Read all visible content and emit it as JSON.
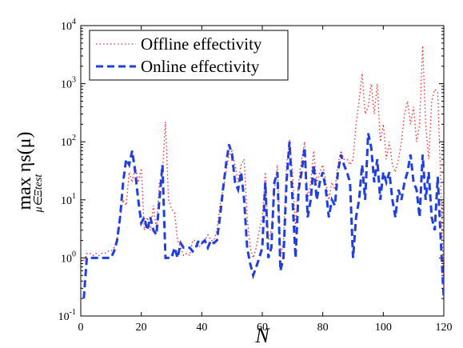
{
  "chart_data": {
    "type": "line",
    "xlabel": "N",
    "ylabel": "max ηs(μ)",
    "ylabel_sub": "μ∈Ξtest",
    "log_y": true,
    "legend": "upper left",
    "xlim": [
      0,
      120
    ],
    "xticks": [
      0,
      20,
      40,
      60,
      80,
      100,
      120
    ],
    "ylim": [
      0.1,
      10000
    ],
    "yticks": [
      {
        "value": 0.1,
        "label": "10^-1"
      },
      {
        "value": 1,
        "label": "10^0"
      },
      {
        "value": 10,
        "label": "10^1"
      },
      {
        "value": 100,
        "label": "10^2"
      },
      {
        "value": 1000,
        "label": "10^3"
      },
      {
        "value": 10000,
        "label": "10^4"
      }
    ],
    "x": [
      1,
      2,
      3,
      4,
      5,
      6,
      7,
      8,
      9,
      10,
      11,
      12,
      13,
      14,
      15,
      16,
      17,
      18,
      19,
      20,
      21,
      22,
      23,
      24,
      25,
      26,
      27,
      28,
      29,
      30,
      31,
      32,
      33,
      34,
      35,
      36,
      37,
      38,
      39,
      40,
      41,
      42,
      43,
      44,
      45,
      46,
      47,
      48,
      49,
      50,
      51,
      52,
      53,
      54,
      55,
      56,
      57,
      58,
      59,
      60,
      61,
      62,
      63,
      64,
      65,
      66,
      67,
      68,
      69,
      70,
      71,
      72,
      73,
      74,
      75,
      76,
      77,
      78,
      79,
      80,
      81,
      82,
      83,
      84,
      85,
      86,
      87,
      88,
      89,
      90,
      91,
      92,
      93,
      94,
      95,
      96,
      97,
      98,
      99,
      100,
      101,
      102,
      103,
      104,
      105,
      106,
      107,
      108,
      109,
      110,
      111,
      112,
      113,
      114,
      115,
      116,
      117,
      118,
      119,
      120
    ],
    "series": [
      {
        "name": "Offline effectivity",
        "color": "#ff2020",
        "dash": "1.5 3",
        "width": 1.3,
        "values": [
          0.9,
          1.2,
          1.2,
          1.1,
          1.2,
          1.1,
          1.2,
          1.2,
          1.3,
          1.3,
          1.5,
          2,
          5,
          10,
          8,
          30,
          20,
          40,
          20,
          35,
          3,
          5,
          3,
          8,
          3,
          20,
          30,
          220,
          10,
          7,
          6,
          2,
          1.5,
          1.1,
          1.2,
          1.1,
          2,
          2,
          1.5,
          1.8,
          2,
          2.5,
          2,
          2,
          3,
          8,
          15,
          30,
          60,
          70,
          40,
          20,
          40,
          50,
          5,
          1.5,
          1,
          1.5,
          3,
          5,
          30,
          2,
          3,
          15,
          40,
          1,
          2,
          40,
          110,
          30,
          3,
          20,
          50,
          100,
          10,
          20,
          70,
          20,
          30,
          40,
          20,
          10,
          20,
          15,
          40,
          70,
          50,
          50,
          40,
          50,
          200,
          500,
          1500,
          300,
          400,
          1000,
          300,
          1000,
          100,
          200,
          50,
          100,
          40,
          30,
          50,
          100,
          300,
          500,
          200,
          400,
          100,
          200,
          4500,
          200,
          50,
          500,
          800,
          700,
          20,
          0.3
        ]
      },
      {
        "name": "Online effectivity",
        "color": "#1f3fe0",
        "dash": "9 5",
        "width": 3,
        "values": [
          0.2,
          1,
          1,
          1,
          1,
          1,
          1,
          1,
          1,
          1,
          1.3,
          2,
          5,
          20,
          50,
          40,
          70,
          30,
          10,
          4,
          5,
          3,
          5,
          3,
          2.5,
          10,
          40,
          1,
          1,
          1,
          1.5,
          1,
          1.8,
          1.5,
          1.5,
          1.5,
          1.3,
          1.5,
          2,
          1.8,
          2,
          1.5,
          2,
          1.8,
          2,
          5,
          15,
          40,
          90,
          60,
          20,
          15,
          30,
          10,
          1.5,
          0.8,
          0.5,
          0.7,
          1,
          1.5,
          20,
          1,
          1.5,
          20,
          30,
          0.6,
          1,
          20,
          100,
          10,
          1,
          15,
          30,
          80,
          5,
          10,
          40,
          10,
          20,
          30,
          15,
          5,
          10,
          8,
          30,
          60,
          40,
          30,
          20,
          1,
          5,
          10,
          40,
          10,
          140,
          80,
          20,
          50,
          10,
          30,
          20,
          30,
          10,
          5,
          15,
          10,
          20,
          30,
          60,
          20,
          15,
          5,
          60,
          10,
          30,
          5,
          3,
          25,
          2,
          0.2
        ]
      }
    ]
  }
}
